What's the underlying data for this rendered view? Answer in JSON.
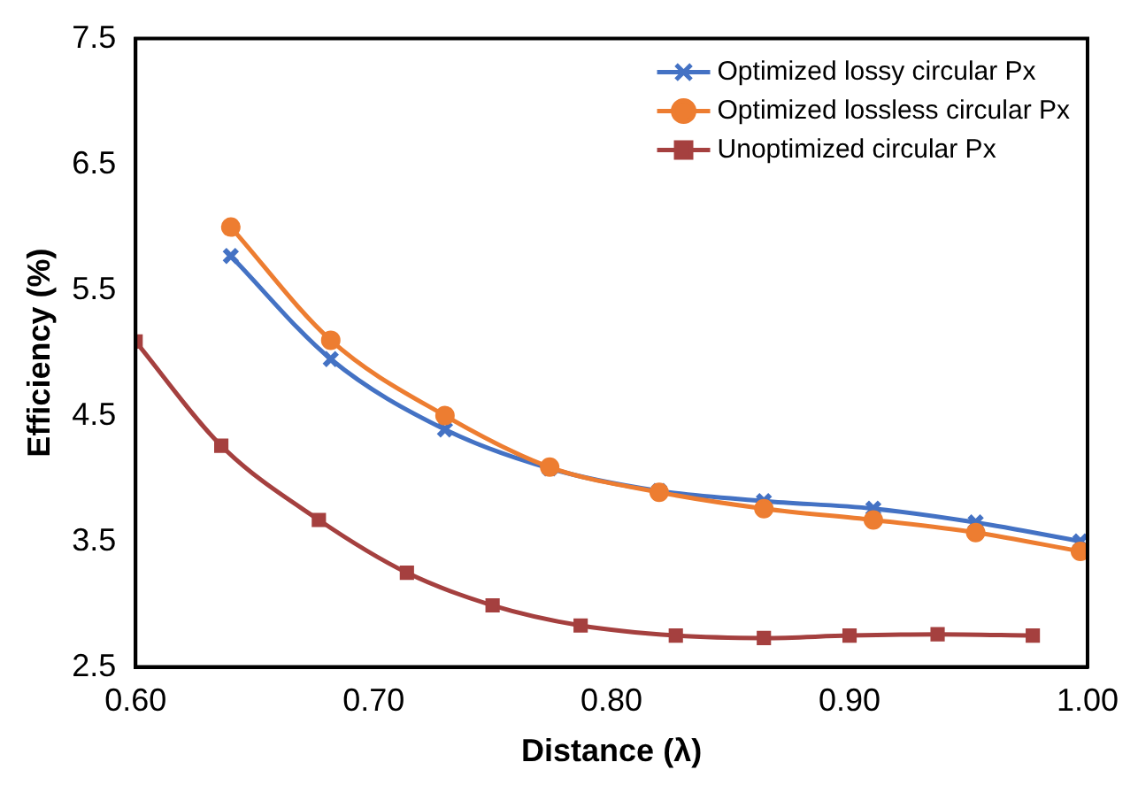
{
  "chart_data": {
    "type": "line",
    "xlabel": "Distance (λ)",
    "ylabel": "Efficiency (%)",
    "xlim": [
      0.6,
      1.0
    ],
    "xticks": [
      {
        "value": 0.6,
        "label": "0.60"
      },
      {
        "value": 0.7,
        "label": "0.70"
      },
      {
        "value": 0.8,
        "label": "0.80"
      },
      {
        "value": 0.9,
        "label": "0.90"
      },
      {
        "value": 1.0,
        "label": "1.00"
      }
    ],
    "ylim": [
      2.5,
      7.5
    ],
    "yticks": [
      2.5,
      3.5,
      4.5,
      5.5,
      6.5,
      7.5
    ],
    "grid": false,
    "legend": "top right",
    "series": [
      {
        "name": "Optimized lossy circular Px",
        "color": "#4472c4",
        "marker": "cross",
        "x": [
          0.64,
          0.682,
          0.73,
          0.774,
          0.82,
          0.864,
          0.91,
          0.953,
          0.997
        ],
        "values": [
          5.77,
          4.95,
          4.39,
          4.08,
          3.9,
          3.82,
          3.76,
          3.65,
          3.5
        ]
      },
      {
        "name": "Optimized lossless circular Px",
        "color": "#ed7d31",
        "marker": "circle",
        "x": [
          0.64,
          0.682,
          0.73,
          0.774,
          0.82,
          0.864,
          0.91,
          0.953,
          0.997
        ],
        "values": [
          6.0,
          5.1,
          4.5,
          4.09,
          3.89,
          3.76,
          3.67,
          3.57,
          3.42
        ]
      },
      {
        "name": "Unoptimized circular Px",
        "color": "#a5403f",
        "marker": "square",
        "x": [
          0.6,
          0.636,
          0.677,
          0.714,
          0.75,
          0.787,
          0.827,
          0.864,
          0.9,
          0.937,
          0.977
        ],
        "values": [
          5.09,
          4.26,
          3.67,
          3.25,
          2.99,
          2.83,
          2.75,
          2.73,
          2.75,
          2.76,
          2.75
        ]
      }
    ]
  }
}
